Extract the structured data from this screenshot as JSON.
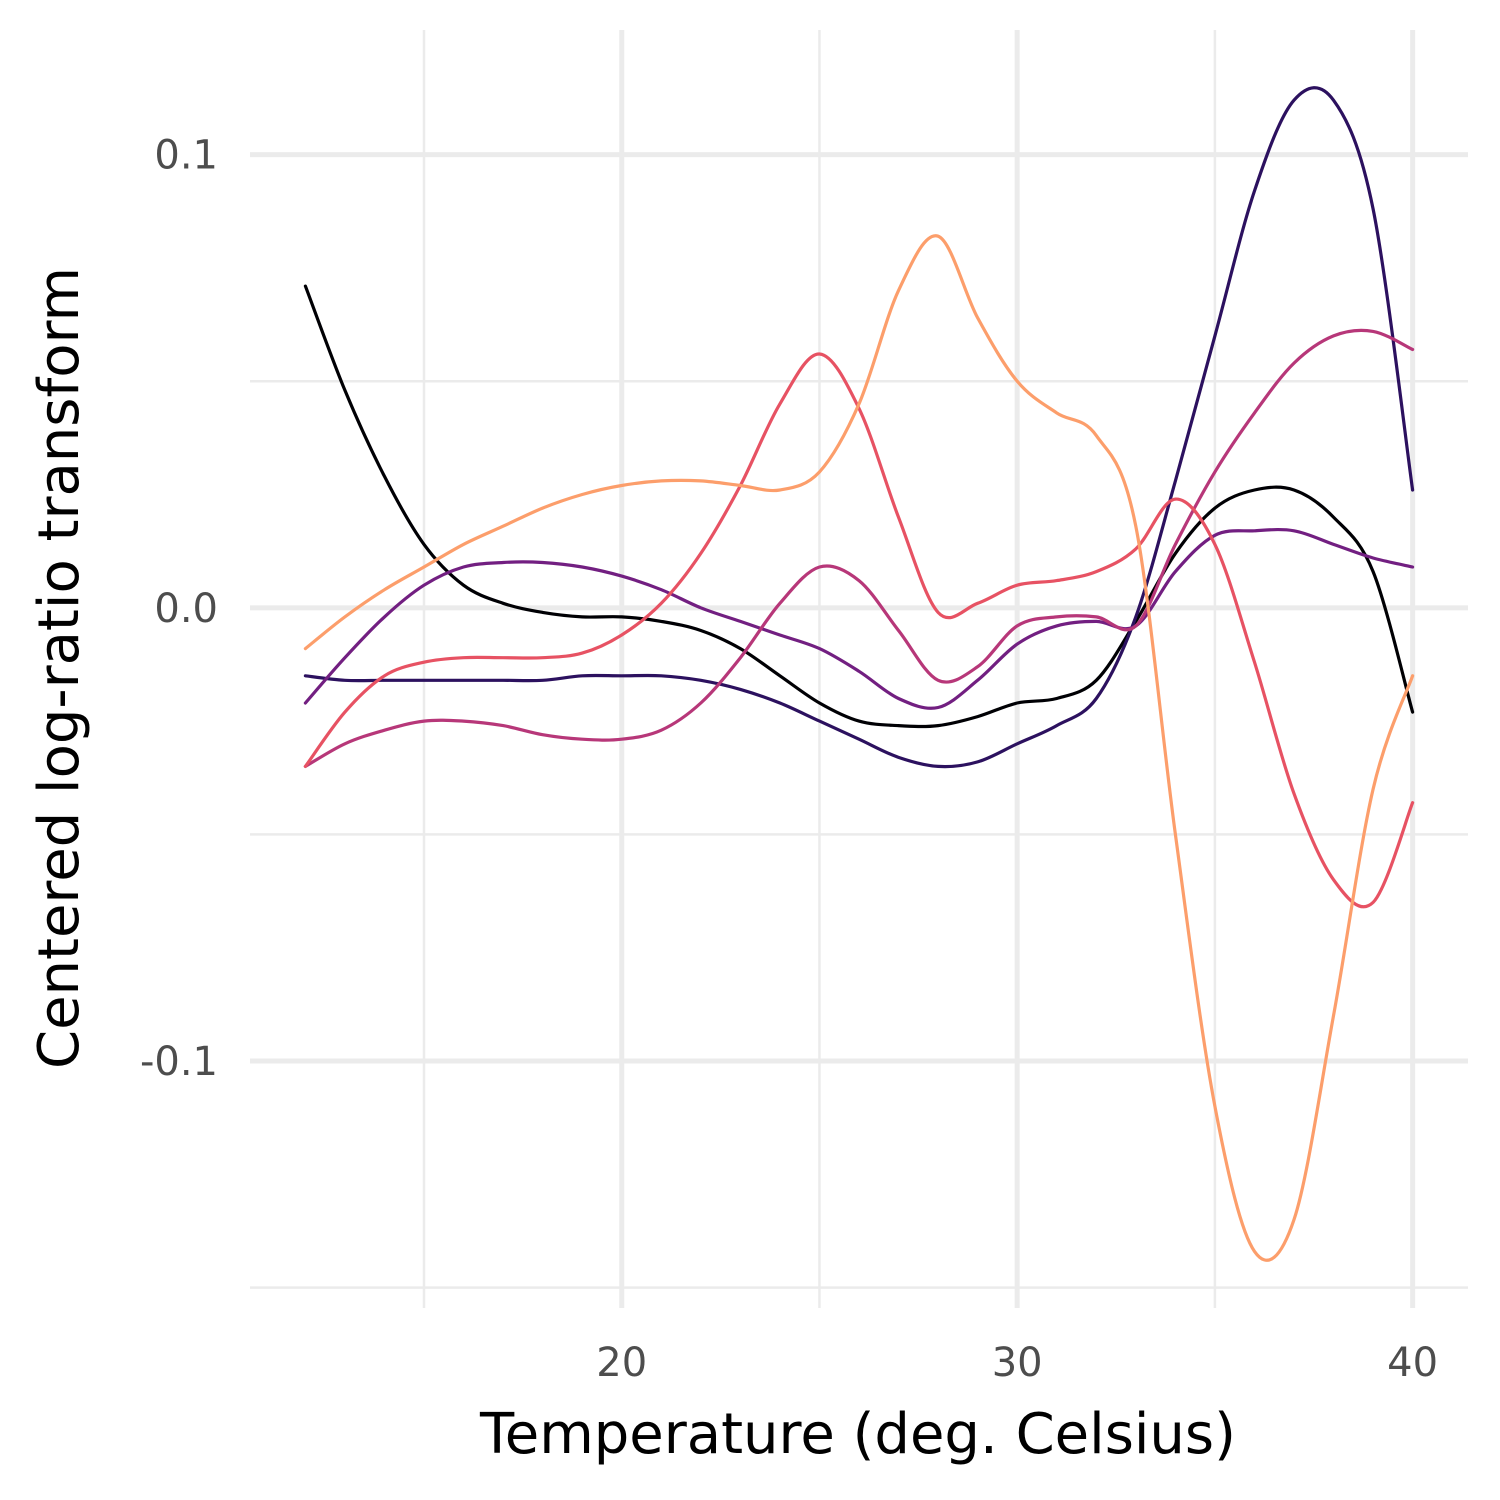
{
  "chart_data": {
    "type": "line",
    "title": "",
    "xlabel": "Temperature (deg. Celsius)",
    "ylabel": "Centered log-ratio transform",
    "xlim": [
      10.6,
      41.4
    ],
    "ylim": [
      -0.1545,
      0.1275
    ],
    "x_ticks": [
      20,
      30,
      40
    ],
    "x_tick_labels": [
      "20",
      "30",
      "40"
    ],
    "x_minor_ticks": [
      15,
      25,
      35
    ],
    "y_ticks": [
      -0.1,
      0.0,
      0.1
    ],
    "y_tick_labels": [
      "-0.1",
      "0.0",
      "0.1"
    ],
    "y_minor_ticks": [
      -0.15,
      -0.05,
      0.05
    ],
    "grid": true,
    "legend": "none",
    "x": [
      12,
      13,
      14,
      15,
      16,
      17,
      18,
      19,
      20,
      21,
      22,
      23,
      24,
      25,
      26,
      27,
      28,
      29,
      30,
      31,
      32,
      33,
      34,
      35,
      36,
      37,
      38,
      39,
      40
    ],
    "series": [
      {
        "name": "series-1",
        "color": "#000004",
        "values": [
          0.071,
          0.048,
          0.029,
          0.014,
          0.005,
          0.001,
          -0.001,
          -0.002,
          -0.002,
          -0.003,
          -0.005,
          -0.009,
          -0.015,
          -0.021,
          -0.025,
          -0.026,
          -0.026,
          -0.024,
          -0.021,
          -0.02,
          -0.016,
          -0.003,
          0.012,
          0.022,
          0.026,
          0.026,
          0.02,
          0.008,
          -0.023
        ]
      },
      {
        "name": "series-2",
        "color": "#2c115f",
        "values": [
          -0.015,
          -0.016,
          -0.016,
          -0.016,
          -0.016,
          -0.016,
          -0.016,
          -0.015,
          -0.015,
          -0.015,
          -0.016,
          -0.018,
          -0.021,
          -0.025,
          -0.029,
          -0.033,
          -0.035,
          -0.034,
          -0.03,
          -0.026,
          -0.02,
          -0.002,
          0.028,
          0.06,
          0.092,
          0.112,
          0.112,
          0.088,
          0.026
        ]
      },
      {
        "name": "series-3",
        "color": "#721f81",
        "values": [
          -0.021,
          -0.011,
          -0.002,
          0.005,
          0.009,
          0.01,
          0.01,
          0.009,
          0.007,
          0.004,
          0.0,
          -0.003,
          -0.006,
          -0.009,
          -0.014,
          -0.02,
          -0.022,
          -0.016,
          -0.008,
          -0.004,
          -0.003,
          -0.004,
          0.008,
          0.016,
          0.017,
          0.017,
          0.014,
          0.011,
          0.009
        ]
      },
      {
        "name": "series-4",
        "color": "#b73779",
        "values": [
          -0.035,
          -0.03,
          -0.027,
          -0.025,
          -0.025,
          -0.026,
          -0.028,
          -0.029,
          -0.029,
          -0.027,
          -0.021,
          -0.011,
          0.001,
          0.009,
          0.006,
          -0.005,
          -0.016,
          -0.013,
          -0.004,
          -0.002,
          -0.002,
          -0.004,
          0.014,
          0.03,
          0.043,
          0.054,
          0.06,
          0.061,
          0.057
        ]
      },
      {
        "name": "series-5",
        "color": "#e75263",
        "values": [
          -0.035,
          -0.023,
          -0.015,
          -0.012,
          -0.011,
          -0.011,
          -0.011,
          -0.01,
          -0.006,
          0.001,
          0.012,
          0.027,
          0.045,
          0.056,
          0.044,
          0.02,
          -0.001,
          0.001,
          0.005,
          0.006,
          0.008,
          0.013,
          0.024,
          0.014,
          -0.012,
          -0.041,
          -0.06,
          -0.065,
          -0.043
        ]
      },
      {
        "name": "series-6",
        "color": "#fc9e6b",
        "values": [
          -0.009,
          -0.002,
          0.004,
          0.009,
          0.014,
          0.018,
          0.022,
          0.025,
          0.027,
          0.028,
          0.028,
          0.027,
          0.026,
          0.03,
          0.045,
          0.07,
          0.082,
          0.064,
          0.05,
          0.043,
          0.038,
          0.018,
          -0.05,
          -0.11,
          -0.142,
          -0.135,
          -0.09,
          -0.04,
          -0.015
        ]
      }
    ]
  }
}
